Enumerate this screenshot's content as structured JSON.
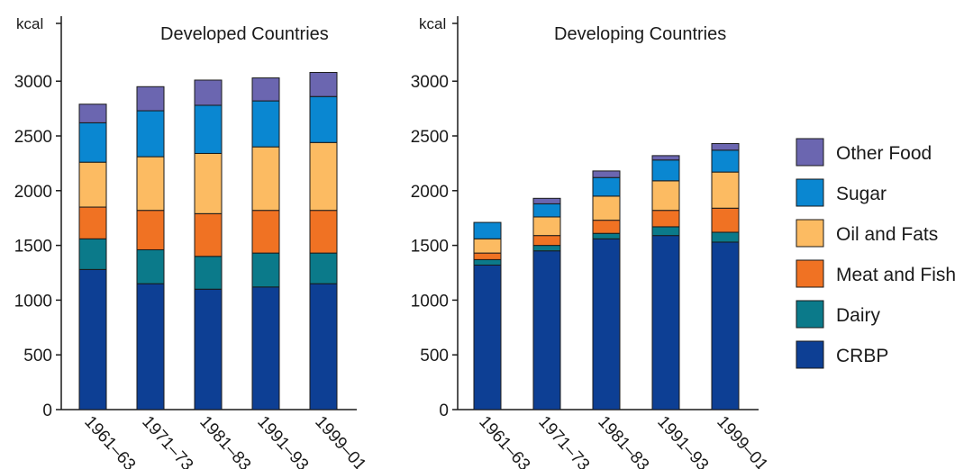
{
  "colors": {
    "CRBP": "#0d3f94",
    "Dairy": "#0b7a8a",
    "Meat and Fish": "#f07223",
    "Oil and Fats": "#fcbb62",
    "Sugar": "#0a87d1",
    "Other Food": "#6b66b0"
  },
  "legend": {
    "items": [
      "Other Food",
      "Sugar",
      "Oil and Fats",
      "Meat and Fish",
      "Dairy",
      "CRBP"
    ]
  },
  "chart_data": [
    {
      "type": "bar",
      "stacked": true,
      "title": "Developed Countries",
      "ylabel": "kcal",
      "ylim": [
        0,
        3100
      ],
      "yticks": [
        0,
        500,
        1000,
        1500,
        2000,
        2500,
        3000
      ],
      "categories": [
        "1961–63",
        "1971–73",
        "1981–83",
        "1991–93",
        "1999–01"
      ],
      "series": [
        {
          "name": "CRBP",
          "values": [
            1280,
            1150,
            1100,
            1120,
            1150
          ]
        },
        {
          "name": "Dairy",
          "values": [
            280,
            310,
            300,
            310,
            280
          ]
        },
        {
          "name": "Meat and Fish",
          "values": [
            290,
            360,
            390,
            390,
            390
          ]
        },
        {
          "name": "Oil and Fats",
          "values": [
            410,
            490,
            550,
            580,
            620
          ]
        },
        {
          "name": "Sugar",
          "values": [
            360,
            420,
            440,
            420,
            420
          ]
        },
        {
          "name": "Other Food",
          "values": [
            170,
            220,
            230,
            210,
            220
          ]
        }
      ],
      "grid": false,
      "legend": "right"
    },
    {
      "type": "bar",
      "stacked": true,
      "title": "Developing Countries",
      "ylabel": "kcal",
      "ylim": [
        0,
        3100
      ],
      "yticks": [
        0,
        500,
        1000,
        1500,
        2000,
        2500,
        3000
      ],
      "categories": [
        "1961–63",
        "1971–73",
        "1981–83",
        "1991–93",
        "1999–01"
      ],
      "series": [
        {
          "name": "CRBP",
          "values": [
            1320,
            1450,
            1560,
            1590,
            1530
          ]
        },
        {
          "name": "Dairy",
          "values": [
            50,
            50,
            50,
            80,
            90
          ]
        },
        {
          "name": "Meat and Fish",
          "values": [
            60,
            90,
            120,
            150,
            220
          ]
        },
        {
          "name": "Oil and Fats",
          "values": [
            130,
            170,
            220,
            270,
            330
          ]
        },
        {
          "name": "Sugar",
          "values": [
            150,
            120,
            170,
            190,
            200
          ]
        },
        {
          "name": "Other Food",
          "values": [
            0,
            50,
            60,
            40,
            60
          ]
        }
      ],
      "grid": false,
      "legend": "right"
    }
  ]
}
